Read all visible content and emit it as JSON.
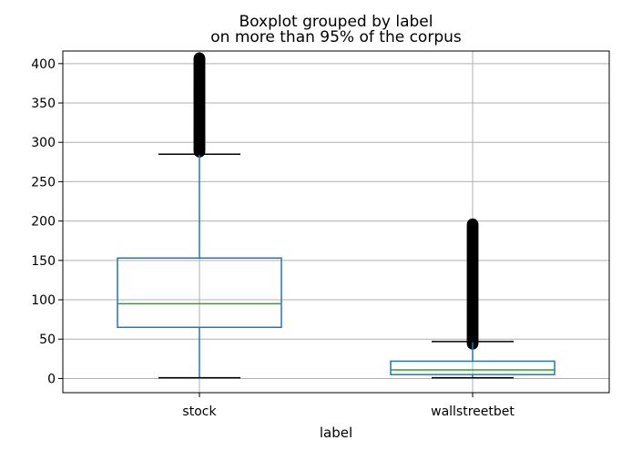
{
  "chart_data": {
    "type": "boxplot",
    "title": "Boxplot grouped by label",
    "subtitle": "on more than 95% of the corpus",
    "xlabel": "label",
    "ylabel": "",
    "ylim": [
      -18,
      416
    ],
    "yticks": [
      0,
      50,
      100,
      150,
      200,
      250,
      300,
      350,
      400
    ],
    "grid": true,
    "categories": [
      "stock",
      "wallstreetbet"
    ],
    "boxes": [
      {
        "category": "stock",
        "whisker_low": 1,
        "q1": 65,
        "median": 95,
        "q3": 153,
        "whisker_high": 285,
        "outliers_range": [
          288,
          407
        ]
      },
      {
        "category": "wallstreetbet",
        "whisker_low": 1,
        "q1": 5,
        "median": 11,
        "q3": 22,
        "whisker_high": 47,
        "outliers_range": [
          44,
          196
        ]
      }
    ],
    "colors": {
      "box": "#1f77b4",
      "median": "#2ca02c",
      "whisker_cap": "#000000",
      "outlier": "#000000",
      "grid": "#b0b0b0",
      "axes": "#000000"
    }
  }
}
